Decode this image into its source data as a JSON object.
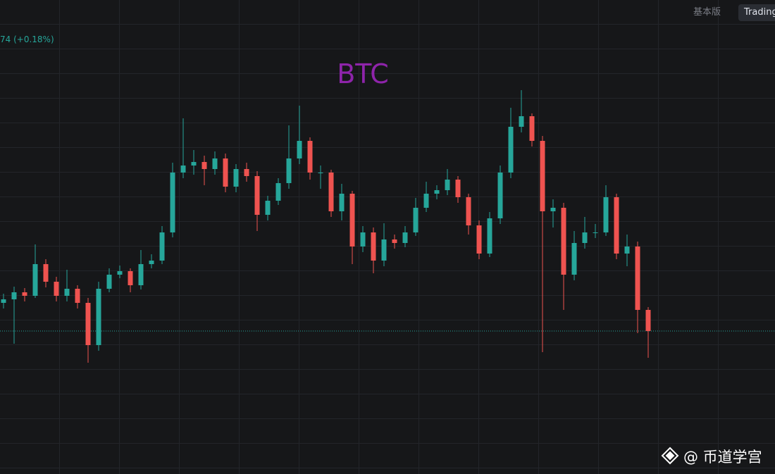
{
  "header": {
    "tabs": [
      "基本版",
      "Trading"
    ]
  },
  "chart_data": {
    "type": "candlestick",
    "title": "BTC",
    "legend_text": "74 (+0.18%)",
    "open": [
      243,
      248,
      258,
      253,
      298,
      273,
      253,
      263,
      243,
      183,
      263,
      283,
      288,
      268,
      298,
      303,
      343,
      428,
      438,
      443,
      433,
      448,
      408,
      433,
      423,
      368,
      388,
      413,
      448,
      473,
      428,
      428,
      373,
      398,
      323,
      343,
      303,
      333,
      328,
      343,
      378,
      398,
      403,
      418,
      393,
      353,
      313,
      363,
      428,
      493,
      508,
      473,
      373,
      378,
      283,
      328,
      343,
      343,
      393,
      313,
      323,
      233
    ],
    "high": [
      256,
      266,
      264,
      326,
      305,
      280,
      290,
      268,
      250,
      273,
      292,
      296,
      292,
      318,
      312,
      352,
      442,
      505,
      460,
      452,
      458,
      455,
      440,
      442,
      430,
      395,
      420,
      495,
      523,
      478,
      438,
      432,
      412,
      402,
      352,
      350,
      356,
      340,
      352,
      392,
      415,
      410,
      433,
      423,
      398,
      360,
      372,
      438,
      520,
      545,
      512,
      480,
      390,
      385,
      345,
      365,
      355,
      410,
      398,
      340,
      330,
      237
    ],
    "low": [
      235,
      185,
      245,
      250,
      265,
      245,
      245,
      235,
      158,
      175,
      258,
      278,
      258,
      262,
      292,
      298,
      336,
      420,
      425,
      410,
      425,
      400,
      400,
      415,
      345,
      360,
      382,
      405,
      440,
      418,
      405,
      365,
      360,
      298,
      315,
      285,
      295,
      320,
      322,
      338,
      372,
      390,
      396,
      385,
      340,
      305,
      308,
      355,
      420,
      485,
      465,
      173,
      350,
      233,
      275,
      320,
      335,
      338,
      305,
      295,
      200,
      165
    ],
    "close": [
      248,
      258,
      253,
      298,
      273,
      253,
      263,
      243,
      183,
      263,
      283,
      288,
      268,
      298,
      303,
      343,
      428,
      438,
      443,
      433,
      448,
      408,
      433,
      423,
      368,
      388,
      413,
      448,
      473,
      428,
      428,
      373,
      398,
      323,
      343,
      303,
      333,
      328,
      343,
      378,
      398,
      403,
      418,
      393,
      353,
      313,
      363,
      428,
      493,
      508,
      473,
      373,
      378,
      283,
      328,
      343,
      343,
      393,
      313,
      323,
      233,
      203
    ],
    "ylim": [
      0,
      673
    ],
    "up_color": "#26a69a",
    "down_color": "#ef5350"
  },
  "watermark": "@ 币道学宫"
}
